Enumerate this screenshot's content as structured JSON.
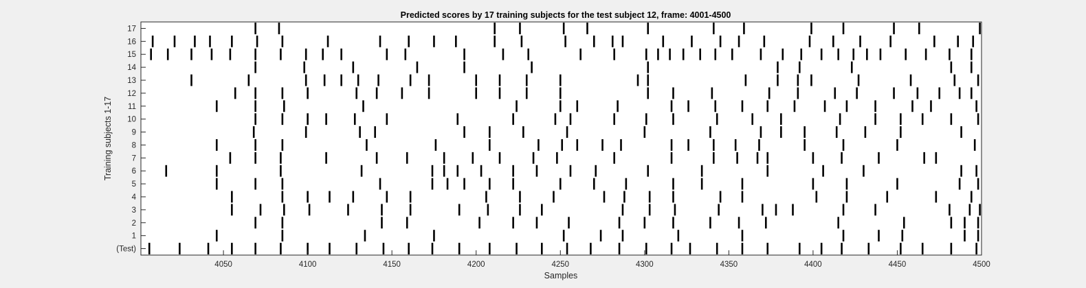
{
  "chart_data": {
    "type": "raster",
    "title": "Predicted scores by 17 training subjects for the test subject 12, frame: 4001-4500",
    "xlabel": "Samples",
    "ylabel": "Training subjects 1-17",
    "xlim": [
      4001,
      4500
    ],
    "x_ticks": [
      "4050",
      "4100",
      "4150",
      "4200",
      "4250",
      "4300",
      "4350",
      "4400",
      "4450",
      "4500"
    ],
    "y_tick_labels": [
      "(Test)",
      "1",
      "2",
      "3",
      "4",
      "5",
      "6",
      "7",
      "8",
      "9",
      "10",
      "11",
      "12",
      "13",
      "14",
      "15",
      "16",
      "17"
    ],
    "grid": false,
    "mark_color": "#000000",
    "series": [
      {
        "row": "(Test)",
        "events": [
          4006,
          4024,
          4041,
          4055,
          4069,
          4084,
          4100,
          4113,
          4129,
          4145,
          4160,
          4174,
          4190,
          4208,
          4224,
          4239,
          4254,
          4268,
          4285,
          4301,
          4316,
          4327,
          4343,
          4358,
          4373,
          4392,
          4405,
          4417,
          4433,
          4452,
          4465,
          4482,
          4497
        ]
      },
      {
        "row": "1",
        "events": [
          4046,
          4085,
          4134,
          4175,
          4252,
          4274,
          4287,
          4320,
          4358,
          4418,
          4439,
          4453,
          4490,
          4498
        ]
      },
      {
        "row": "2",
        "events": [
          4069,
          4085,
          4144,
          4159,
          4202,
          4222,
          4236,
          4255,
          4285,
          4300,
          4317,
          4339,
          4356,
          4372,
          4415,
          4454,
          4482,
          4490,
          4498
        ]
      },
      {
        "row": "3",
        "events": [
          4055,
          4072,
          4086,
          4101,
          4124,
          4144,
          4161,
          4190,
          4207,
          4226,
          4239,
          4287,
          4303,
          4318,
          4344,
          4370,
          4378,
          4388,
          4418,
          4437,
          4481,
          4493,
          4499
        ]
      },
      {
        "row": "4",
        "events": [
          4055,
          4085,
          4100,
          4113,
          4127,
          4147,
          4161,
          4206,
          4226,
          4246,
          4276,
          4288,
          4303,
          4317,
          4345,
          4358,
          4402,
          4420,
          4444,
          4473,
          4494
        ]
      },
      {
        "row": "5",
        "events": [
          4046,
          4069,
          4085,
          4143,
          4174,
          4183,
          4193,
          4208,
          4222,
          4250,
          4270,
          4289,
          4317,
          4334,
          4358,
          4400,
          4420,
          4450,
          4487,
          4498
        ]
      },
      {
        "row": "6",
        "events": [
          4016,
          4046,
          4084,
          4132,
          4174,
          4181,
          4189,
          4203,
          4222,
          4236,
          4256,
          4271,
          4302,
          4334,
          4373,
          4406,
          4430,
          4488,
          4497
        ]
      },
      {
        "row": "7",
        "events": [
          4054,
          4069,
          4084,
          4111,
          4141,
          4159,
          4181,
          4198,
          4214,
          4234,
          4248,
          4282,
          4316,
          4341,
          4355,
          4367,
          4373,
          4400,
          4417,
          4439,
          4466,
          4473
        ]
      },
      {
        "row": "8",
        "events": [
          4046,
          4069,
          4085,
          4135,
          4176,
          4208,
          4237,
          4251,
          4260,
          4275,
          4286,
          4316,
          4326,
          4341,
          4354,
          4368,
          4395,
          4418,
          4450,
          4496
        ]
      },
      {
        "row": "9",
        "events": [
          4068,
          4099,
          4131,
          4140,
          4193,
          4208,
          4228,
          4254,
          4300,
          4339,
          4369,
          4381,
          4395,
          4414,
          4431,
          4452,
          4488
        ]
      },
      {
        "row": "10",
        "events": [
          4069,
          4085,
          4100,
          4111,
          4128,
          4147,
          4189,
          4222,
          4247,
          4256,
          4282,
          4301,
          4317,
          4343,
          4364,
          4381,
          4416,
          4437,
          4452,
          4465,
          4482,
          4498
        ]
      },
      {
        "row": "11",
        "events": [
          4046,
          4069,
          4086,
          4133,
          4224,
          4250,
          4260,
          4284,
          4316,
          4326,
          4342,
          4358,
          4373,
          4389,
          4407,
          4420,
          4437,
          4459,
          4470,
          4497
        ]
      },
      {
        "row": "12",
        "events": [
          4057,
          4069,
          4085,
          4100,
          4129,
          4141,
          4156,
          4172,
          4200,
          4214,
          4230,
          4250,
          4302,
          4317,
          4340,
          4374,
          4391,
          4413,
          4426,
          4448,
          4462,
          4475,
          4487,
          4494
        ]
      },
      {
        "row": "13",
        "events": [
          4031,
          4065,
          4099,
          4110,
          4120,
          4130,
          4142,
          4161,
          4172,
          4200,
          4214,
          4230,
          4250,
          4296,
          4302,
          4360,
          4379,
          4391,
          4399,
          4427,
          4458,
          4484,
          4498
        ]
      },
      {
        "row": "14",
        "events": [
          4069,
          4098,
          4127,
          4165,
          4193,
          4233,
          4302,
          4379,
          4392,
          4423,
          4482,
          4494
        ]
      },
      {
        "row": "15",
        "events": [
          4007,
          4017,
          4031,
          4043,
          4054,
          4069,
          4084,
          4099,
          4109,
          4120,
          4147,
          4158,
          4193,
          4216,
          4231,
          4262,
          4282,
          4301,
          4308,
          4315,
          4323,
          4333,
          4342,
          4352,
          4369,
          4382,
          4393,
          4405,
          4415,
          4424,
          4432,
          4440,
          4455,
          4467,
          4481,
          4494
        ]
      },
      {
        "row": "16",
        "events": [
          4008,
          4021,
          4033,
          4042,
          4055,
          4070,
          4085,
          4112,
          4143,
          4160,
          4175,
          4188,
          4211,
          4227,
          4253,
          4270,
          4281,
          4287,
          4311,
          4328,
          4345,
          4356,
          4371,
          4398,
          4412,
          4428,
          4446,
          4472,
          4486,
          4495
        ]
      },
      {
        "row": "17",
        "events": [
          4069,
          4083,
          4211,
          4226,
          4252,
          4266,
          4302,
          4341,
          4359,
          4399,
          4418,
          4448,
          4463,
          4499
        ]
      }
    ]
  }
}
